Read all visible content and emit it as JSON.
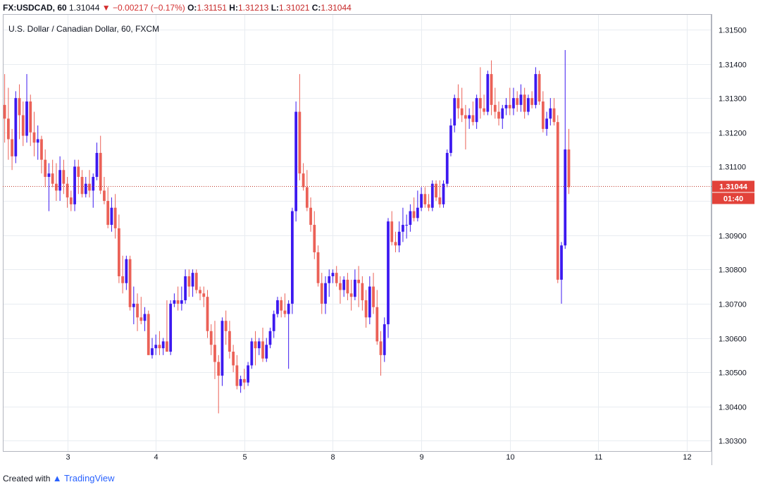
{
  "header": {
    "symbol": "FX:USDCAD, 60",
    "last": "1.31044",
    "change": "−0.00217 (−0.17%)",
    "o_label": "O:",
    "o_value": "1.31151",
    "h_label": "H:",
    "h_value": "1.31213",
    "l_label": "L:",
    "l_value": "1.31021",
    "c_label": "C:",
    "c_value": "1.31044"
  },
  "chart_title": "U.S. Dollar / Canadian Dollar, 60, FXCM",
  "price_badge": "1.31044",
  "countdown_badge": "01:40",
  "footer": {
    "created_with": "Created with",
    "brand": "TradingView"
  },
  "colors": {
    "up": "#3c19f0",
    "down": "#eb6157",
    "grid": "#e8ecf1",
    "last_price_line": "#c0392b"
  },
  "chart_data": {
    "type": "candlestick",
    "title": "U.S. Dollar / Canadian Dollar, 60, FXCM",
    "ylim": [
      1.3027,
      1.31545
    ],
    "y_ticks": [
      "1.31500",
      "1.31400",
      "1.31300",
      "1.31200",
      "1.31100",
      "1.31000",
      "1.30900",
      "1.30800",
      "1.30700",
      "1.30600",
      "1.30500",
      "1.30400",
      "1.30300"
    ],
    "x_labels": [
      "3",
      "4",
      "5",
      "8",
      "9",
      "10",
      "11",
      "12"
    ],
    "last_price": 1.31044,
    "grid": true,
    "candles": [
      [
        1.3128,
        1.3137,
        1.3117,
        1.3124
      ],
      [
        1.3124,
        1.3133,
        1.3112,
        1.3118
      ],
      [
        1.3118,
        1.3121,
        1.3109,
        1.3113
      ],
      [
        1.3113,
        1.3132,
        1.3111,
        1.313
      ],
      [
        1.313,
        1.3134,
        1.3118,
        1.3125
      ],
      [
        1.3125,
        1.3129,
        1.3116,
        1.3119
      ],
      [
        1.3119,
        1.3137,
        1.3117,
        1.3129
      ],
      [
        1.3129,
        1.3131,
        1.3116,
        1.312
      ],
      [
        1.312,
        1.3126,
        1.3113,
        1.3117
      ],
      [
        1.3117,
        1.3122,
        1.3112,
        1.3118
      ],
      [
        1.3118,
        1.3119,
        1.3108,
        1.3112
      ],
      [
        1.3112,
        1.3115,
        1.3104,
        1.3107
      ],
      [
        1.3107,
        1.3111,
        1.3097,
        1.3108
      ],
      [
        1.3108,
        1.3112,
        1.3104,
        1.3105
      ],
      [
        1.3105,
        1.3111,
        1.31,
        1.3103
      ],
      [
        1.3103,
        1.3113,
        1.31,
        1.3109
      ],
      [
        1.3109,
        1.3112,
        1.3102,
        1.3105
      ],
      [
        1.3105,
        1.3107,
        1.3098,
        1.3101
      ],
      [
        1.3101,
        1.3103,
        1.3097,
        1.3099
      ],
      [
        1.3099,
        1.3112,
        1.3097,
        1.311
      ],
      [
        1.311,
        1.3112,
        1.3102,
        1.3107
      ],
      [
        1.3107,
        1.3109,
        1.3101,
        1.3102
      ],
      [
        1.3102,
        1.3107,
        1.3101,
        1.3105
      ],
      [
        1.3105,
        1.3109,
        1.3101,
        1.3103
      ],
      [
        1.3103,
        1.3108,
        1.3098,
        1.3107
      ],
      [
        1.3107,
        1.3117,
        1.3106,
        1.3114
      ],
      [
        1.3114,
        1.3119,
        1.3102,
        1.3103
      ],
      [
        1.3103,
        1.3107,
        1.3099,
        1.31
      ],
      [
        1.31,
        1.3104,
        1.3092,
        1.3093
      ],
      [
        1.3093,
        1.3101,
        1.3091,
        1.3098
      ],
      [
        1.3098,
        1.3102,
        1.3089,
        1.3092
      ],
      [
        1.3092,
        1.3096,
        1.3076,
        1.3078
      ],
      [
        1.3078,
        1.3084,
        1.3073,
        1.3076
      ],
      [
        1.3076,
        1.3084,
        1.3074,
        1.3083
      ],
      [
        1.3083,
        1.3084,
        1.3068,
        1.3069
      ],
      [
        1.3069,
        1.3075,
        1.3064,
        1.307
      ],
      [
        1.307,
        1.3073,
        1.3062,
        1.3066
      ],
      [
        1.3066,
        1.3072,
        1.3064,
        1.3065
      ],
      [
        1.3065,
        1.3069,
        1.3062,
        1.3067
      ],
      [
        1.3067,
        1.3068,
        1.3055,
        1.3055
      ],
      [
        1.3055,
        1.306,
        1.3054,
        1.3057
      ],
      [
        1.3057,
        1.3061,
        1.3055,
        1.3058
      ],
      [
        1.3058,
        1.3062,
        1.3055,
        1.3057
      ],
      [
        1.3057,
        1.306,
        1.3055,
        1.3059
      ],
      [
        1.3059,
        1.3071,
        1.3056,
        1.3056
      ],
      [
        1.3056,
        1.3071,
        1.3055,
        1.307
      ],
      [
        1.307,
        1.3073,
        1.3069,
        1.3071
      ],
      [
        1.3071,
        1.3075,
        1.3068,
        1.307
      ],
      [
        1.307,
        1.3075,
        1.3068,
        1.3071
      ],
      [
        1.3071,
        1.308,
        1.307,
        1.3078
      ],
      [
        1.3078,
        1.308,
        1.3072,
        1.3075
      ],
      [
        1.3075,
        1.308,
        1.3072,
        1.3079
      ],
      [
        1.3079,
        1.308,
        1.3073,
        1.3074
      ],
      [
        1.3074,
        1.3075,
        1.3071,
        1.3073
      ],
      [
        1.3073,
        1.3075,
        1.3069,
        1.3072
      ],
      [
        1.3072,
        1.3074,
        1.306,
        1.3062
      ],
      [
        1.3062,
        1.3064,
        1.3055,
        1.3058
      ],
      [
        1.3058,
        1.3065,
        1.3048,
        1.3053
      ],
      [
        1.3053,
        1.3055,
        1.3038,
        1.3049
      ],
      [
        1.3049,
        1.3066,
        1.3046,
        1.3065
      ],
      [
        1.3065,
        1.3068,
        1.3058,
        1.3062
      ],
      [
        1.3062,
        1.3065,
        1.3054,
        1.3056
      ],
      [
        1.3056,
        1.3058,
        1.305,
        1.3052
      ],
      [
        1.3052,
        1.3055,
        1.3045,
        1.3046
      ],
      [
        1.3046,
        1.3049,
        1.3044,
        1.3048
      ],
      [
        1.3048,
        1.3051,
        1.3045,
        1.3047
      ],
      [
        1.3047,
        1.3053,
        1.3046,
        1.3052
      ],
      [
        1.3052,
        1.306,
        1.3051,
        1.3059
      ],
      [
        1.3059,
        1.3062,
        1.3052,
        1.3057
      ],
      [
        1.3057,
        1.306,
        1.3055,
        1.3059
      ],
      [
        1.3059,
        1.3063,
        1.3053,
        1.3054
      ],
      [
        1.3054,
        1.306,
        1.3053,
        1.3058
      ],
      [
        1.3058,
        1.3063,
        1.3057,
        1.3062
      ],
      [
        1.3062,
        1.3068,
        1.306,
        1.3067
      ],
      [
        1.3067,
        1.3072,
        1.3066,
        1.3071
      ],
      [
        1.3071,
        1.3072,
        1.3066,
        1.3068
      ],
      [
        1.3068,
        1.3073,
        1.3066,
        1.3067
      ],
      [
        1.3067,
        1.3071,
        1.3051,
        1.307
      ],
      [
        1.307,
        1.3098,
        1.3067,
        1.3097
      ],
      [
        1.3097,
        1.3129,
        1.3094,
        1.3126
      ],
      [
        1.3126,
        1.3137,
        1.3106,
        1.3108
      ],
      [
        1.3108,
        1.3111,
        1.3103,
        1.3104
      ],
      [
        1.3104,
        1.3109,
        1.3097,
        1.3098
      ],
      [
        1.3098,
        1.3101,
        1.3091,
        1.3093
      ],
      [
        1.3093,
        1.3097,
        1.3083,
        1.3085
      ],
      [
        1.3085,
        1.3087,
        1.3075,
        1.3076
      ],
      [
        1.3076,
        1.3079,
        1.3067,
        1.307
      ],
      [
        1.307,
        1.3078,
        1.3067,
        1.3076
      ],
      [
        1.3076,
        1.308,
        1.3072,
        1.3078
      ],
      [
        1.3078,
        1.308,
        1.3076,
        1.3079
      ],
      [
        1.3079,
        1.3081,
        1.3075,
        1.3076
      ],
      [
        1.3076,
        1.3078,
        1.307,
        1.3074
      ],
      [
        1.3074,
        1.3078,
        1.3072,
        1.3077
      ],
      [
        1.3077,
        1.3079,
        1.3071,
        1.3073
      ],
      [
        1.3073,
        1.3077,
        1.3068,
        1.3072
      ],
      [
        1.3072,
        1.308,
        1.3071,
        1.3077
      ],
      [
        1.3077,
        1.3081,
        1.3069,
        1.3076
      ],
      [
        1.3076,
        1.3078,
        1.3068,
        1.3071
      ],
      [
        1.3071,
        1.3074,
        1.3063,
        1.3066
      ],
      [
        1.3066,
        1.3078,
        1.3064,
        1.3075
      ],
      [
        1.3075,
        1.3079,
        1.3067,
        1.3069
      ],
      [
        1.3069,
        1.3074,
        1.3058,
        1.3059
      ],
      [
        1.3059,
        1.3062,
        1.3049,
        1.3055
      ],
      [
        1.3055,
        1.3066,
        1.3053,
        1.3064
      ],
      [
        1.3064,
        1.3095,
        1.306,
        1.3094
      ],
      [
        1.3094,
        1.3097,
        1.3087,
        1.3088
      ],
      [
        1.3088,
        1.3091,
        1.3085,
        1.3087
      ],
      [
        1.3087,
        1.3094,
        1.3085,
        1.3091
      ],
      [
        1.3091,
        1.3098,
        1.3088,
        1.3093
      ],
      [
        1.3093,
        1.3096,
        1.3089,
        1.3093
      ],
      [
        1.3093,
        1.3099,
        1.3091,
        1.3097
      ],
      [
        1.3097,
        1.3101,
        1.3094,
        1.3095
      ],
      [
        1.3095,
        1.3103,
        1.3094,
        1.3098
      ],
      [
        1.3098,
        1.3104,
        1.3097,
        1.3102
      ],
      [
        1.3102,
        1.3104,
        1.3098,
        1.3099
      ],
      [
        1.3099,
        1.3102,
        1.3097,
        1.3098
      ],
      [
        1.3098,
        1.3106,
        1.3097,
        1.3105
      ],
      [
        1.3105,
        1.3106,
        1.31,
        1.3101
      ],
      [
        1.3101,
        1.3106,
        1.3098,
        1.3099
      ],
      [
        1.3099,
        1.3106,
        1.3098,
        1.3105
      ],
      [
        1.3105,
        1.3115,
        1.3104,
        1.3114
      ],
      [
        1.3114,
        1.3124,
        1.3113,
        1.3122
      ],
      [
        1.3122,
        1.3131,
        1.312,
        1.313
      ],
      [
        1.313,
        1.3134,
        1.3124,
        1.3127
      ],
      [
        1.3127,
        1.3133,
        1.3123,
        1.3125
      ],
      [
        1.3125,
        1.3128,
        1.3115,
        1.3124
      ],
      [
        1.3124,
        1.3127,
        1.3121,
        1.3125
      ],
      [
        1.3125,
        1.3129,
        1.3122,
        1.3123
      ],
      [
        1.3123,
        1.3131,
        1.3121,
        1.313
      ],
      [
        1.313,
        1.3139,
        1.3124,
        1.3127
      ],
      [
        1.3127,
        1.3131,
        1.3125,
        1.3126
      ],
      [
        1.3126,
        1.3138,
        1.3125,
        1.3137
      ],
      [
        1.3137,
        1.3141,
        1.3125,
        1.3128
      ],
      [
        1.3128,
        1.3133,
        1.3124,
        1.3126
      ],
      [
        1.3126,
        1.3129,
        1.3122,
        1.3124
      ],
      [
        1.3124,
        1.3128,
        1.3121,
        1.3127
      ],
      [
        1.3127,
        1.313,
        1.3125,
        1.3128
      ],
      [
        1.3128,
        1.3133,
        1.3125,
        1.3127
      ],
      [
        1.3127,
        1.3133,
        1.3125,
        1.313
      ],
      [
        1.313,
        1.3132,
        1.3126,
        1.3128
      ],
      [
        1.3128,
        1.3134,
        1.3126,
        1.3131
      ],
      [
        1.3131,
        1.3133,
        1.3124,
        1.3126
      ],
      [
        1.3126,
        1.3131,
        1.3125,
        1.313
      ],
      [
        1.313,
        1.3132,
        1.3127,
        1.3128
      ],
      [
        1.3128,
        1.3139,
        1.3127,
        1.3137
      ],
      [
        1.3137,
        1.3138,
        1.3128,
        1.3129
      ],
      [
        1.3129,
        1.3132,
        1.312,
        1.3121
      ],
      [
        1.3121,
        1.3126,
        1.3119,
        1.3124
      ],
      [
        1.3124,
        1.313,
        1.3122,
        1.3127
      ],
      [
        1.3127,
        1.313,
        1.3122,
        1.3123
      ],
      [
        1.3123,
        1.3125,
        1.3076,
        1.3077
      ],
      [
        1.3077,
        1.3088,
        1.307,
        1.3087
      ],
      [
        1.3087,
        1.3144,
        1.3086,
        1.3115
      ],
      [
        1.3115,
        1.3121,
        1.3102,
        1.3104
      ]
    ]
  }
}
